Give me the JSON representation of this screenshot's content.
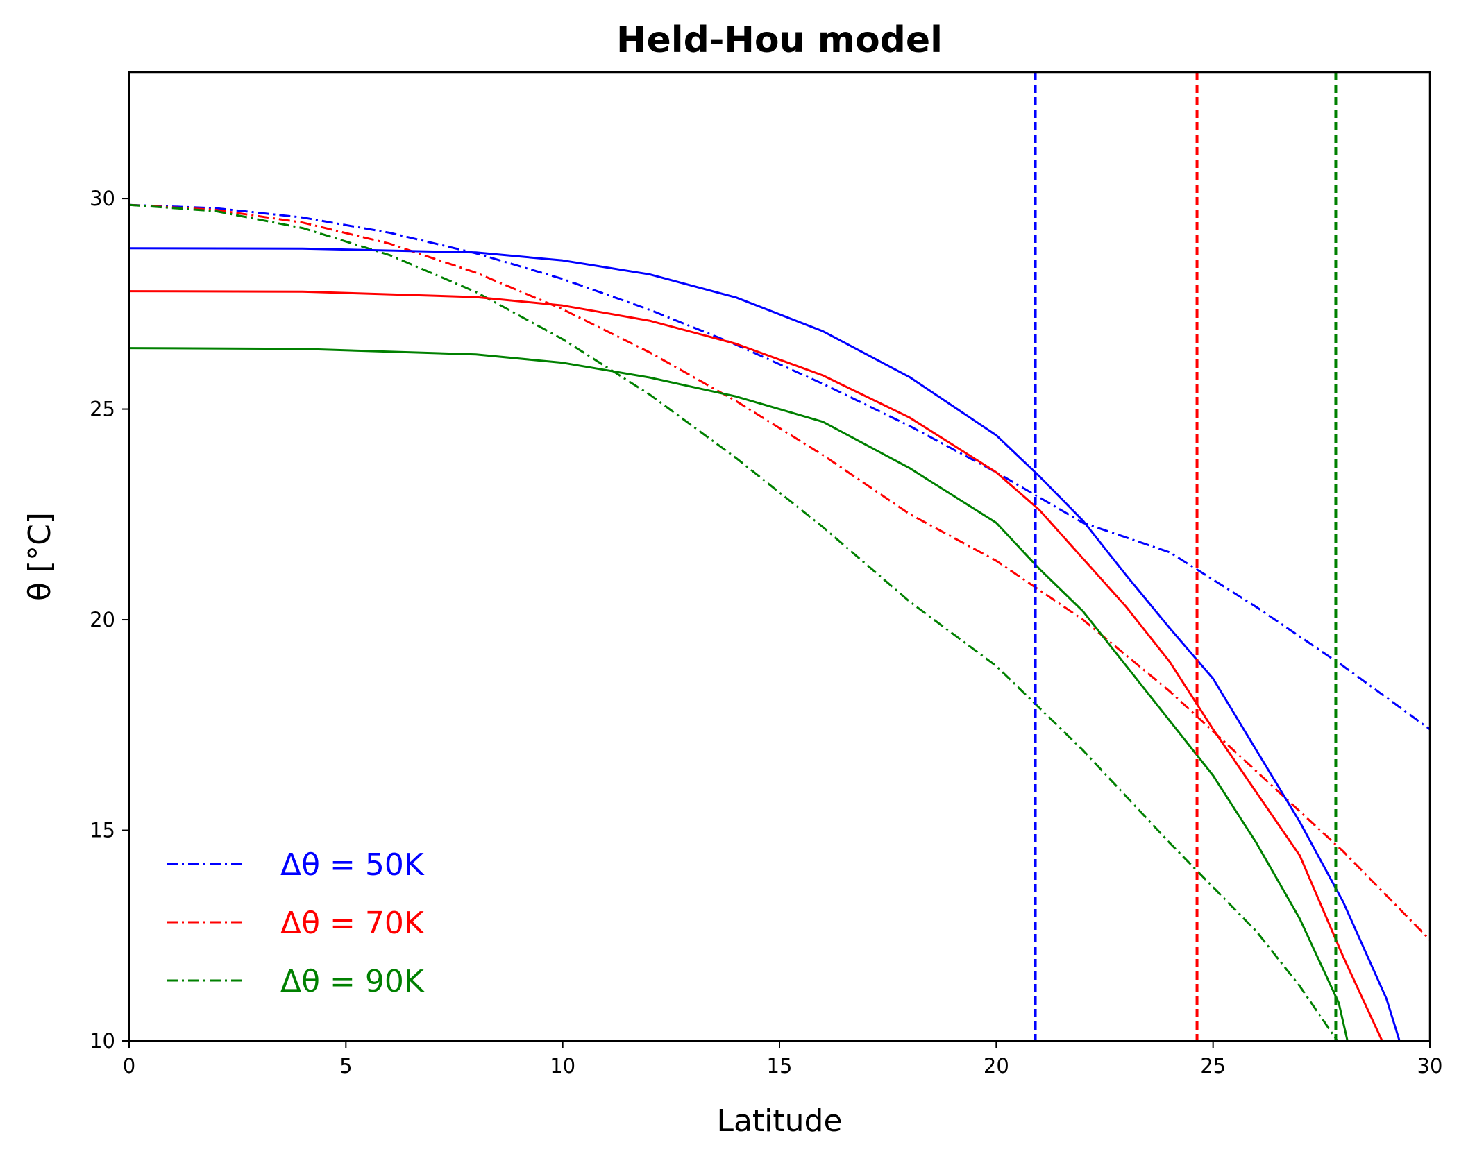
{
  "chart_data": {
    "type": "line",
    "title": "Held-Hou model",
    "xlabel": "Latitude",
    "ylabel": "θ [°C]",
    "xlim": [
      0,
      30
    ],
    "ylim": [
      10,
      33
    ],
    "xticks": [
      0,
      5,
      10,
      15,
      20,
      25,
      30
    ],
    "yticks": [
      10,
      15,
      20,
      25,
      30
    ],
    "grid": false,
    "legend_placement": "lower-left",
    "series": [
      {
        "name": "Δθ = 50K",
        "style": "dashdot",
        "color": "#0000ff",
        "points": [
          [
            0,
            29.85
          ],
          [
            2,
            29.77
          ],
          [
            4,
            29.55
          ],
          [
            6,
            29.19
          ],
          [
            8,
            28.7
          ],
          [
            10,
            28.09
          ],
          [
            12,
            27.36
          ],
          [
            14,
            26.53
          ],
          [
            16,
            25.6
          ],
          [
            18,
            24.6
          ],
          [
            20,
            23.5
          ],
          [
            22,
            22.3
          ],
          [
            24,
            21.6
          ],
          [
            26,
            20.3
          ],
          [
            28,
            18.9
          ],
          [
            30,
            17.4
          ]
        ]
      },
      {
        "name": "Δθ = 70K",
        "style": "dashdot",
        "color": "#ff0000",
        "points": [
          [
            0,
            29.85
          ],
          [
            2,
            29.73
          ],
          [
            4,
            29.43
          ],
          [
            6,
            28.93
          ],
          [
            8,
            28.24
          ],
          [
            10,
            27.37
          ],
          [
            12,
            26.35
          ],
          [
            14,
            25.19
          ],
          [
            16,
            23.91
          ],
          [
            18,
            22.51
          ],
          [
            20,
            21.4
          ],
          [
            22,
            20.0
          ],
          [
            24,
            18.3
          ],
          [
            26,
            16.4
          ],
          [
            28,
            14.5
          ],
          [
            30,
            12.4
          ]
        ]
      },
      {
        "name": "Δθ = 90K",
        "style": "dashdot",
        "color": "#008000",
        "points": [
          [
            0,
            29.85
          ],
          [
            2,
            29.7
          ],
          [
            4,
            29.3
          ],
          [
            6,
            28.66
          ],
          [
            8,
            27.78
          ],
          [
            10,
            26.66
          ],
          [
            12,
            25.35
          ],
          [
            14,
            23.84
          ],
          [
            16,
            22.2
          ],
          [
            18,
            20.43
          ],
          [
            20,
            18.9
          ],
          [
            22,
            16.9
          ],
          [
            24,
            14.7
          ],
          [
            26,
            12.6
          ],
          [
            27,
            11.3
          ],
          [
            28,
            9.8
          ],
          [
            28.3,
            9.3
          ]
        ]
      },
      {
        "name": "",
        "style": "solid",
        "color": "#0000ff",
        "points": [
          [
            0,
            28.82
          ],
          [
            4,
            28.81
          ],
          [
            8,
            28.72
          ],
          [
            10,
            28.53
          ],
          [
            12,
            28.2
          ],
          [
            14,
            27.65
          ],
          [
            16,
            26.85
          ],
          [
            18,
            25.76
          ],
          [
            20,
            24.38
          ],
          [
            21,
            23.4
          ],
          [
            22,
            22.35
          ],
          [
            23,
            21.05
          ],
          [
            24,
            19.8
          ],
          [
            25,
            18.6
          ],
          [
            26,
            16.9
          ],
          [
            27,
            15.2
          ],
          [
            28,
            13.3
          ],
          [
            29,
            11.0
          ],
          [
            29.3,
            10.0
          ]
        ]
      },
      {
        "name": "",
        "style": "solid",
        "color": "#ff0000",
        "points": [
          [
            0,
            27.8
          ],
          [
            4,
            27.79
          ],
          [
            8,
            27.66
          ],
          [
            10,
            27.46
          ],
          [
            12,
            27.1
          ],
          [
            14,
            26.55
          ],
          [
            16,
            25.8
          ],
          [
            18,
            24.8
          ],
          [
            20,
            23.5
          ],
          [
            21,
            22.6
          ],
          [
            22,
            21.45
          ],
          [
            23,
            20.3
          ],
          [
            24,
            19.0
          ],
          [
            25,
            17.4
          ],
          [
            26,
            15.9
          ],
          [
            27,
            14.4
          ],
          [
            28,
            12.0
          ],
          [
            28.9,
            10.0
          ]
        ]
      },
      {
        "name": "",
        "style": "solid",
        "color": "#008000",
        "points": [
          [
            0,
            26.45
          ],
          [
            4,
            26.43
          ],
          [
            8,
            26.3
          ],
          [
            10,
            26.1
          ],
          [
            12,
            25.75
          ],
          [
            14,
            25.3
          ],
          [
            16,
            24.7
          ],
          [
            18,
            23.6
          ],
          [
            20,
            22.3
          ],
          [
            21,
            21.2
          ],
          [
            22,
            20.2
          ],
          [
            23,
            18.9
          ],
          [
            24,
            17.6
          ],
          [
            25,
            16.3
          ],
          [
            26,
            14.7
          ],
          [
            27,
            12.9
          ],
          [
            27.9,
            10.9
          ],
          [
            28.1,
            10.0
          ]
        ]
      }
    ],
    "vlines": [
      {
        "x": 20.9,
        "style": "dashed",
        "color": "#0000ff"
      },
      {
        "x": 24.63,
        "style": "dashed",
        "color": "#ff0000"
      },
      {
        "x": 27.83,
        "style": "dashed",
        "color": "#008000"
      }
    ]
  }
}
